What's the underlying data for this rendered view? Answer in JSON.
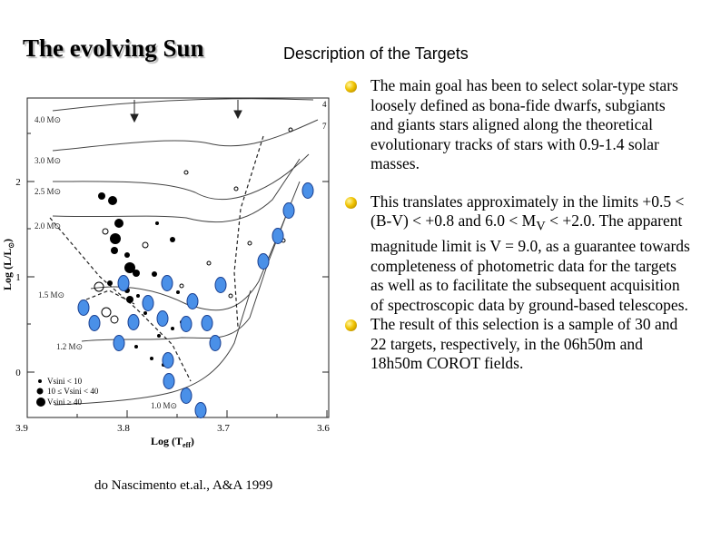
{
  "slide": {
    "title": "The evolving Sun",
    "subtitle": "Description of the Targets",
    "bullets": [
      {
        "text": "The main goal has been to select solar-type stars loosely defined as bona-fide dwarfs, subgiants and giants stars aligned along the theoretical evolutionary tracks of stars with 0.9-1.4 solar masses."
      },
      {
        "pre": "This translates approximately in the limits +0.5 < (B-V) < +0.8 and 6.0 < M",
        "sub": "V",
        "post": " < +2.0. The apparent magnitude limit is V = 9.0, as a guarantee towards completeness of photometric data for the targets as well as to facilitate the subsequent acquisition of spectroscopic data by ground-based telescopes."
      },
      {
        "text": "The result of this selection is a sample of 30 and 22 targets, respectively, in the 06h50m and 18h50m COROT fields."
      }
    ],
    "caption": "do Nascimento et.al., A&A  1999"
  },
  "figure": {
    "x_axis": {
      "label_main": "Log (T",
      "label_sub": "eff",
      "label_close": ")",
      "ticks": [
        "3.9",
        "3.8",
        "3.7",
        "3.6"
      ]
    },
    "y_axis": {
      "label_main": "Log (L/L",
      "label_sub": "⊙",
      "label_close": ")",
      "ticks": [
        "0",
        "1",
        "2"
      ]
    },
    "mass_labels": [
      "4.0 M⊙",
      "3.0 M⊙",
      "2.5 M⊙",
      "2.0 M⊙",
      "1.5 M⊙",
      "1.2 M⊙",
      "1.0 M⊙"
    ],
    "legend": [
      "Vsini < 10",
      "10 ≤ Vsini < 40",
      "Vsini ≥ 40"
    ],
    "corner_numbers": [
      "4",
      "7"
    ],
    "colors": {
      "target_fill": "#4a90e8",
      "target_stroke": "#1a3f8f"
    }
  }
}
